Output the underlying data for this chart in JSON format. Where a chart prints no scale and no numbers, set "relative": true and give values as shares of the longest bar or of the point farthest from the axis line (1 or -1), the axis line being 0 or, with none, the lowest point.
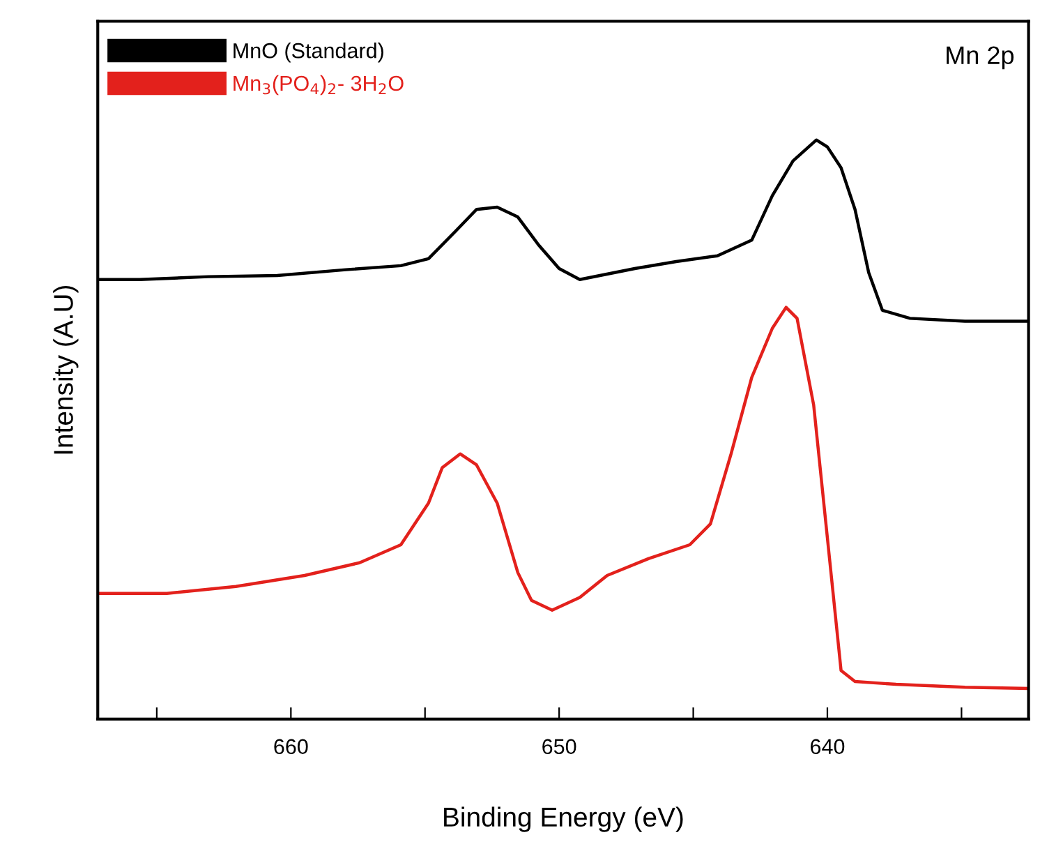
{
  "chart_data": {
    "type": "line",
    "relative": true,
    "xlabel": "Binding Energy (eV)",
    "ylabel": "Intensity (A.U)",
    "annotations": [
      "Mn 2p"
    ],
    "xlim": [
      667.2,
      632.5
    ],
    "xticks": [
      {
        "value": 665,
        "label": null
      },
      660,
      {
        "value": 655,
        "label": null
      },
      650,
      {
        "value": 645,
        "label": null
      },
      640,
      {
        "value": 635,
        "label": null
      }
    ],
    "tick_labels": "x",
    "legend": "top left",
    "grid": false,
    "marker": "none",
    "line_style": "solid",
    "series": [
      {
        "name": "MnO (Standard)",
        "color": "#000000",
        "x": [
          667.18,
          665.64,
          663.08,
          660.51,
          657.95,
          655.9,
          654.87,
          653.85,
          653.08,
          652.31,
          651.54,
          650.77,
          650.0,
          649.23,
          647.18,
          645.64,
          644.1,
          642.82,
          642.05,
          641.28,
          640.41,
          640.0,
          639.49,
          638.97,
          638.46,
          637.95,
          636.92,
          634.87,
          632.51
        ],
        "values": [
          0.759,
          0.759,
          0.764,
          0.766,
          0.776,
          0.783,
          0.795,
          0.843,
          0.88,
          0.884,
          0.867,
          0.819,
          0.778,
          0.759,
          0.778,
          0.79,
          0.8,
          0.827,
          0.904,
          0.964,
          1.0,
          0.988,
          0.952,
          0.88,
          0.771,
          0.706,
          0.692,
          0.687,
          0.687
        ]
      },
      {
        "name": "Mn$_{3}$(PO$_{4}$)$_{2}$- 3H$_{2}$O",
        "color": "#e3211c",
        "x": [
          667.18,
          664.62,
          662.05,
          659.49,
          657.44,
          655.9,
          654.87,
          654.36,
          653.69,
          653.08,
          652.31,
          651.54,
          651.03,
          650.26,
          649.23,
          648.21,
          646.67,
          645.13,
          644.36,
          643.59,
          642.82,
          642.05,
          641.54,
          641.13,
          640.51,
          640.0,
          639.49,
          638.97,
          637.44,
          634.87,
          632.51
        ],
        "values": [
          0.217,
          0.217,
          0.229,
          0.248,
          0.27,
          0.301,
          0.373,
          0.434,
          0.458,
          0.439,
          0.373,
          0.253,
          0.205,
          0.188,
          0.21,
          0.248,
          0.277,
          0.301,
          0.337,
          0.458,
          0.59,
          0.675,
          0.711,
          0.692,
          0.542,
          0.313,
          0.084,
          0.065,
          0.06,
          0.055,
          0.053
        ]
      }
    ]
  }
}
